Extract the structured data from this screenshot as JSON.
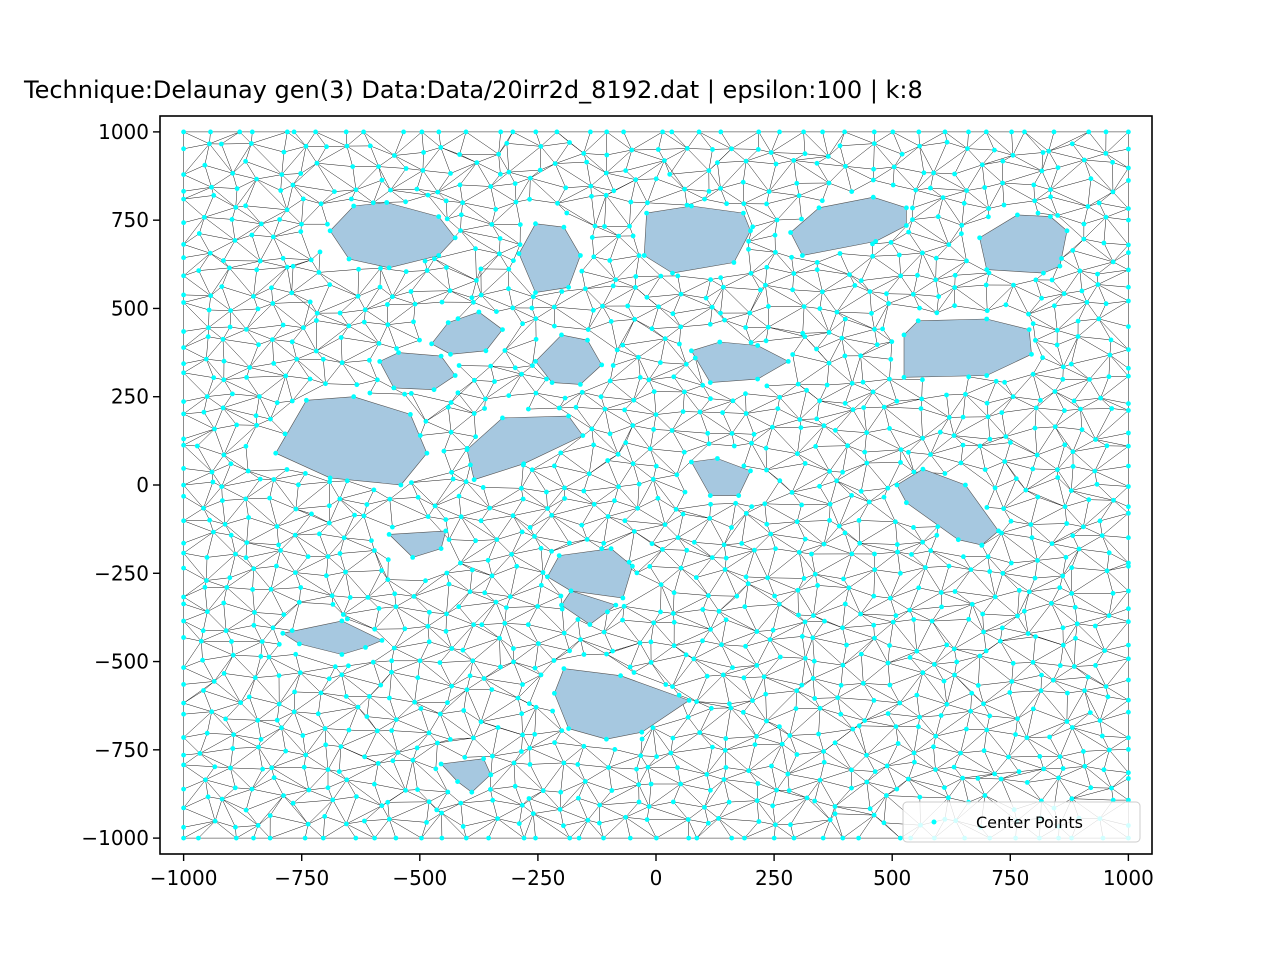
{
  "chart_data": {
    "type": "scatter",
    "title": "Technique:Delaunay  gen(3) Data:Data/20irr2d_8192.dat | epsilon:100 | k:8",
    "xlabel": "",
    "ylabel": "",
    "xlim": [
      -1050,
      1050
    ],
    "ylim": [
      -1045,
      1045
    ],
    "xticks": [
      -1000,
      -750,
      -500,
      -250,
      0,
      250,
      500,
      750,
      1000
    ],
    "xtick_labels": [
      "−1000",
      "−750",
      "−500",
      "−250",
      "0",
      "250",
      "500",
      "750",
      "1000"
    ],
    "yticks": [
      1000,
      750,
      500,
      250,
      0,
      -250,
      -500,
      -750,
      -1000
    ],
    "ytick_labels": [
      "1000",
      "750",
      "500",
      "250",
      "0",
      "−250",
      "−500",
      "−750",
      "−1000"
    ],
    "grid": false,
    "legend": {
      "placement": "lower-right",
      "entries": [
        "Center Points"
      ]
    },
    "colors": {
      "points": "#00ffff",
      "mesh": "#000000",
      "fill": "#a6c8e0"
    },
    "series": [
      {
        "name": "Center Points",
        "kind": "points"
      }
    ],
    "polygons": [
      [
        [
          -690,
          720
        ],
        [
          -640,
          790
        ],
        [
          -570,
          800
        ],
        [
          -460,
          760
        ],
        [
          -425,
          700
        ],
        [
          -460,
          650
        ],
        [
          -565,
          615
        ],
        [
          -650,
          640
        ],
        [
          -690,
          720
        ]
      ],
      [
        [
          -290,
          655
        ],
        [
          -255,
          740
        ],
        [
          -195,
          730
        ],
        [
          -160,
          650
        ],
        [
          -185,
          560
        ],
        [
          -255,
          545
        ],
        [
          -290,
          655
        ]
      ],
      [
        [
          -20,
          770
        ],
        [
          75,
          790
        ],
        [
          185,
          770
        ],
        [
          200,
          720
        ],
        [
          165,
          630
        ],
        [
          35,
          600
        ],
        [
          -25,
          650
        ],
        [
          -20,
          770
        ]
      ],
      [
        [
          285,
          715
        ],
        [
          345,
          785
        ],
        [
          460,
          815
        ],
        [
          530,
          785
        ],
        [
          530,
          735
        ],
        [
          465,
          690
        ],
        [
          310,
          650
        ],
        [
          285,
          715
        ]
      ],
      [
        [
          685,
          700
        ],
        [
          765,
          765
        ],
        [
          835,
          760
        ],
        [
          870,
          720
        ],
        [
          855,
          620
        ],
        [
          820,
          600
        ],
        [
          700,
          610
        ],
        [
          685,
          700
        ]
      ],
      [
        [
          -475,
          400
        ],
        [
          -440,
          460
        ],
        [
          -375,
          490
        ],
        [
          -325,
          440
        ],
        [
          -360,
          380
        ],
        [
          -435,
          370
        ],
        [
          -475,
          400
        ]
      ],
      [
        [
          -585,
          350
        ],
        [
          -545,
          375
        ],
        [
          -455,
          365
        ],
        [
          -425,
          310
        ],
        [
          -470,
          270
        ],
        [
          -555,
          275
        ],
        [
          -585,
          350
        ]
      ],
      [
        [
          -255,
          350
        ],
        [
          -200,
          425
        ],
        [
          -145,
          410
        ],
        [
          -115,
          340
        ],
        [
          -160,
          285
        ],
        [
          -220,
          290
        ],
        [
          -255,
          350
        ]
      ],
      [
        [
          75,
          380
        ],
        [
          135,
          405
        ],
        [
          215,
          395
        ],
        [
          280,
          350
        ],
        [
          215,
          300
        ],
        [
          115,
          290
        ],
        [
          75,
          380
        ]
      ],
      [
        [
          525,
          425
        ],
        [
          555,
          465
        ],
        [
          700,
          470
        ],
        [
          790,
          440
        ],
        [
          795,
          370
        ],
        [
          700,
          310
        ],
        [
          525,
          305
        ],
        [
          525,
          425
        ]
      ],
      [
        [
          -805,
          90
        ],
        [
          -740,
          240
        ],
        [
          -640,
          250
        ],
        [
          -520,
          200
        ],
        [
          -485,
          90
        ],
        [
          -540,
          0
        ],
        [
          -690,
          20
        ],
        [
          -805,
          90
        ]
      ],
      [
        [
          -400,
          100
        ],
        [
          -325,
          190
        ],
        [
          -185,
          195
        ],
        [
          -155,
          140
        ],
        [
          -280,
          60
        ],
        [
          -385,
          15
        ],
        [
          -400,
          100
        ]
      ],
      [
        [
          75,
          65
        ],
        [
          130,
          75
        ],
        [
          200,
          40
        ],
        [
          175,
          -30
        ],
        [
          115,
          -30
        ],
        [
          75,
          65
        ]
      ],
      [
        [
          510,
          0
        ],
        [
          565,
          45
        ],
        [
          655,
          0
        ],
        [
          725,
          -130
        ],
        [
          690,
          -170
        ],
        [
          640,
          -155
        ],
        [
          530,
          -50
        ],
        [
          510,
          0
        ]
      ],
      [
        [
          -565,
          -140
        ],
        [
          -515,
          -205
        ],
        [
          -455,
          -180
        ],
        [
          -445,
          -130
        ],
        [
          -565,
          -140
        ]
      ],
      [
        [
          -230,
          -260
        ],
        [
          -205,
          -200
        ],
        [
          -95,
          -180
        ],
        [
          -50,
          -230
        ],
        [
          -70,
          -320
        ],
        [
          -180,
          -300
        ],
        [
          -230,
          -260
        ]
      ],
      [
        [
          -200,
          -340
        ],
        [
          -140,
          -395
        ],
        [
          -85,
          -340
        ],
        [
          -180,
          -300
        ],
        [
          -200,
          -340
        ]
      ],
      [
        [
          -790,
          -420
        ],
        [
          -755,
          -450
        ],
        [
          -665,
          -480
        ],
        [
          -615,
          -460
        ],
        [
          -580,
          -440
        ],
        [
          -665,
          -385
        ],
        [
          -790,
          -420
        ]
      ],
      [
        [
          -215,
          -590
        ],
        [
          -185,
          -690
        ],
        [
          -105,
          -720
        ],
        [
          -30,
          -700
        ],
        [
          70,
          -610
        ],
        [
          -75,
          -540
        ],
        [
          -195,
          -520
        ],
        [
          -215,
          -590
        ]
      ],
      [
        [
          -455,
          -790
        ],
        [
          -420,
          -840
        ],
        [
          -390,
          -870
        ],
        [
          -350,
          -820
        ],
        [
          -365,
          -775
        ],
        [
          -455,
          -790
        ]
      ]
    ]
  }
}
